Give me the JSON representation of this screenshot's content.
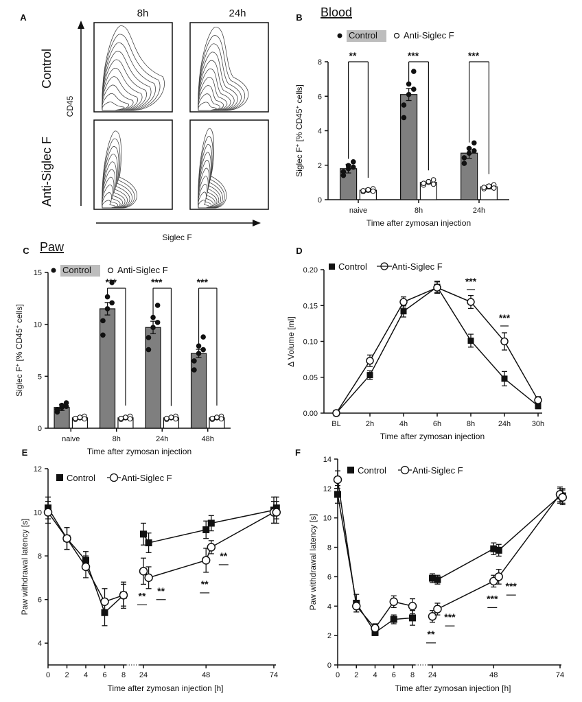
{
  "colors": {
    "control_bar": "#7f7f7f",
    "control_point": "#111111",
    "anti_fill": "#ffffff",
    "legend_highlight": "#bdbdbd",
    "axis": "#111111"
  },
  "panels": {
    "A": {
      "letter": "A",
      "col_labels": [
        "8h",
        "24h"
      ],
      "row_labels": [
        "Control",
        "Anti-Siglec F"
      ],
      "xlabel": "Siglec F",
      "ylabel": "CD45"
    },
    "B": {
      "letter": "B",
      "title": "Blood",
      "legend": [
        "Control",
        "Anti-Siglec F"
      ]
    },
    "C": {
      "letter": "C",
      "title": "Paw",
      "legend": [
        "Control",
        "Anti-Siglec F"
      ]
    },
    "D": {
      "letter": "D",
      "legend": [
        "Control",
        "Anti-Siglec F"
      ]
    },
    "E": {
      "letter": "E",
      "legend": [
        "Control",
        "Anti-Siglec F"
      ]
    },
    "F": {
      "letter": "F",
      "legend": [
        "Control",
        "Anti-Siglec F"
      ]
    }
  },
  "chart_data": [
    {
      "id": "B",
      "type": "bar",
      "title": "Blood",
      "categories": [
        "naive",
        "8h",
        "24h"
      ],
      "series": [
        {
          "name": "Control",
          "values": [
            1.8,
            6.1,
            2.7
          ],
          "sem": [
            0.25,
            0.35,
            0.3
          ]
        },
        {
          "name": "Anti-Siglec F",
          "values": [
            0.55,
            1.0,
            0.75
          ],
          "sem": [
            0.1,
            0.08,
            0.12
          ]
        }
      ],
      "xlabel": "Time after zymosan injection",
      "ylabel": "Siglec F+ [% CD45+ cells]",
      "ylim": [
        0,
        8
      ],
      "yticks": [
        0,
        2,
        4,
        6,
        8
      ],
      "significance": [
        "**",
        "***",
        "***"
      ],
      "legend_position": "top"
    },
    {
      "id": "C",
      "type": "bar",
      "title": "Paw",
      "categories": [
        "naive",
        "8h",
        "24h",
        "48h"
      ],
      "series": [
        {
          "name": "Control",
          "values": [
            2.0,
            11.5,
            9.7,
            7.2
          ],
          "sem": [
            0.3,
            0.6,
            0.6,
            0.4
          ]
        },
        {
          "name": "Anti-Siglec F",
          "values": [
            1.0,
            1.0,
            1.0,
            1.0
          ],
          "sem": [
            0.1,
            0.15,
            0.1,
            0.15
          ]
        }
      ],
      "xlabel": "Time after zymosan injection",
      "ylabel": "Siglec F+ [% CD45+ cells]",
      "ylim": [
        0,
        15
      ],
      "yticks": [
        0,
        5,
        10,
        15
      ],
      "significance": [
        "",
        "***",
        "***",
        "***"
      ],
      "legend_position": "top"
    },
    {
      "id": "D",
      "type": "line",
      "categories": [
        "BL",
        "2h",
        "4h",
        "6h",
        "8h",
        "24h",
        "30h"
      ],
      "series": [
        {
          "name": "Control",
          "marker": "square",
          "values": [
            0.0,
            0.053,
            0.142,
            0.176,
            0.101,
            0.048,
            0.01
          ],
          "sem": [
            0.003,
            0.006,
            0.008,
            0.008,
            0.009,
            0.01,
            0.004
          ]
        },
        {
          "name": "Anti-Siglec F",
          "marker": "circle",
          "values": [
            0.0,
            0.073,
            0.155,
            0.175,
            0.155,
            0.1,
            0.018
          ],
          "sem": [
            0.003,
            0.008,
            0.007,
            0.008,
            0.009,
            0.012,
            0.005
          ]
        }
      ],
      "xlabel": "Time after zymosan injection",
      "ylabel": "Δ Volume [ml]",
      "ylim": [
        0,
        0.2
      ],
      "yticks": [
        "0.00",
        "0.05",
        "0.10",
        "0.15",
        "0.20"
      ],
      "significance": [
        {
          "category": "8h",
          "label": "***"
        },
        {
          "category": "24h",
          "label": "***"
        }
      ],
      "legend_position": "top-left"
    },
    {
      "id": "E",
      "type": "line",
      "x": [
        0,
        2,
        4,
        6,
        8,
        24,
        26,
        48,
        50,
        74,
        75
      ],
      "xticks": [
        "0",
        "2",
        "4",
        "6",
        "8",
        "24",
        "48",
        "74"
      ],
      "series": [
        {
          "name": "Control",
          "marker": "square",
          "values": [
            10.2,
            8.8,
            7.8,
            5.4,
            6.2,
            9.0,
            8.6,
            9.2,
            9.5,
            10.1,
            10.2
          ],
          "sem": [
            0.5,
            0.5,
            0.4,
            0.6,
            0.6,
            0.5,
            0.45,
            0.4,
            0.35,
            0.6,
            0.5
          ]
        },
        {
          "name": "Anti-Siglec F",
          "marker": "circle",
          "values": [
            10.0,
            8.8,
            7.5,
            5.9,
            6.2,
            7.3,
            7.0,
            7.8,
            8.4,
            10.0,
            10.0
          ],
          "sem": [
            0.5,
            0.5,
            0.5,
            0.6,
            0.5,
            0.6,
            0.5,
            0.55,
            0.3,
            0.5,
            0.5
          ]
        }
      ],
      "xlabel": "Time after zymosan injection [h]",
      "ylabel": "Paw withdrawal latency [s]",
      "ylim": [
        3,
        12
      ],
      "yticks": [
        4,
        6,
        8,
        10,
        12
      ],
      "significance": [
        {
          "x": 24,
          "label": "**"
        },
        {
          "x": 26,
          "label": "**"
        },
        {
          "x": 48,
          "label": "**"
        },
        {
          "x": 50,
          "label": "**"
        }
      ],
      "legend_position": "top-left"
    },
    {
      "id": "F",
      "type": "line",
      "x": [
        0,
        2,
        4,
        6,
        8,
        24,
        26,
        48,
        50,
        74,
        75
      ],
      "xticks": [
        "0",
        "2",
        "4",
        "6",
        "8",
        "24",
        "48",
        "74"
      ],
      "series": [
        {
          "name": "Control",
          "marker": "square",
          "values": [
            11.6,
            4.2,
            2.2,
            3.1,
            3.2,
            5.9,
            5.8,
            7.9,
            7.8,
            11.5,
            11.5
          ],
          "sem": [
            0.6,
            0.6,
            0.2,
            0.3,
            0.5,
            0.3,
            0.3,
            0.4,
            0.4,
            0.5,
            0.5
          ]
        },
        {
          "name": "Anti-Siglec F",
          "marker": "circle",
          "values": [
            12.6,
            4.0,
            2.5,
            4.3,
            4.0,
            3.3,
            3.8,
            5.7,
            6.0,
            11.6,
            11.4
          ],
          "sem": [
            0.6,
            0.4,
            0.3,
            0.4,
            0.5,
            0.4,
            0.4,
            0.4,
            0.5,
            0.5,
            0.5
          ]
        }
      ],
      "xlabel": "Time after zymosan injection [h]",
      "ylabel": "Paw withdrawal latency [s]",
      "ylim": [
        0,
        14
      ],
      "yticks": [
        0,
        2,
        4,
        6,
        8,
        10,
        12,
        14
      ],
      "significance": [
        {
          "x": 24,
          "label": "**"
        },
        {
          "x": 26,
          "label": "***"
        },
        {
          "x": 48,
          "label": "***"
        },
        {
          "x": 50,
          "label": "***"
        }
      ],
      "legend_position": "top-left"
    }
  ]
}
